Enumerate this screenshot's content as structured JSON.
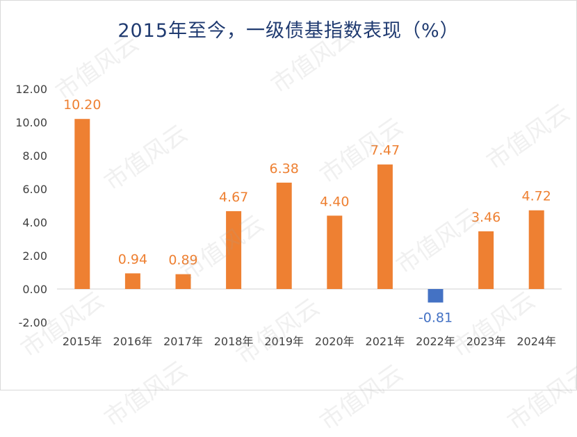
{
  "chart_data": {
    "type": "bar",
    "title": "2015年至今，一级债基指数表现（%）",
    "categories": [
      "2015年",
      "2016年",
      "2017年",
      "2018年",
      "2019年",
      "2020年",
      "2021年",
      "2022年",
      "2023年",
      "2024年"
    ],
    "values": [
      10.2,
      0.94,
      0.89,
      4.67,
      6.38,
      4.4,
      7.47,
      -0.81,
      3.46,
      4.72
    ],
    "value_labels": [
      "10.20",
      "0.94",
      "0.89",
      "4.67",
      "6.38",
      "4.40",
      "7.47",
      "-0.81",
      "3.46",
      "4.72"
    ],
    "y_ticks": [
      "12.00",
      "10.00",
      "8.00",
      "6.00",
      "4.00",
      "2.00",
      "0.00",
      "-2.00"
    ],
    "y_tick_values": [
      12,
      10,
      8,
      6,
      4,
      2,
      0,
      -2
    ],
    "ylim": [
      -2,
      12
    ],
    "grid": false,
    "colors": {
      "positive": "#ee8032",
      "negative": "#4472c4",
      "title": "#1f3a70",
      "axis_text": "#404040"
    }
  },
  "watermark": {
    "text": "市值风云"
  }
}
